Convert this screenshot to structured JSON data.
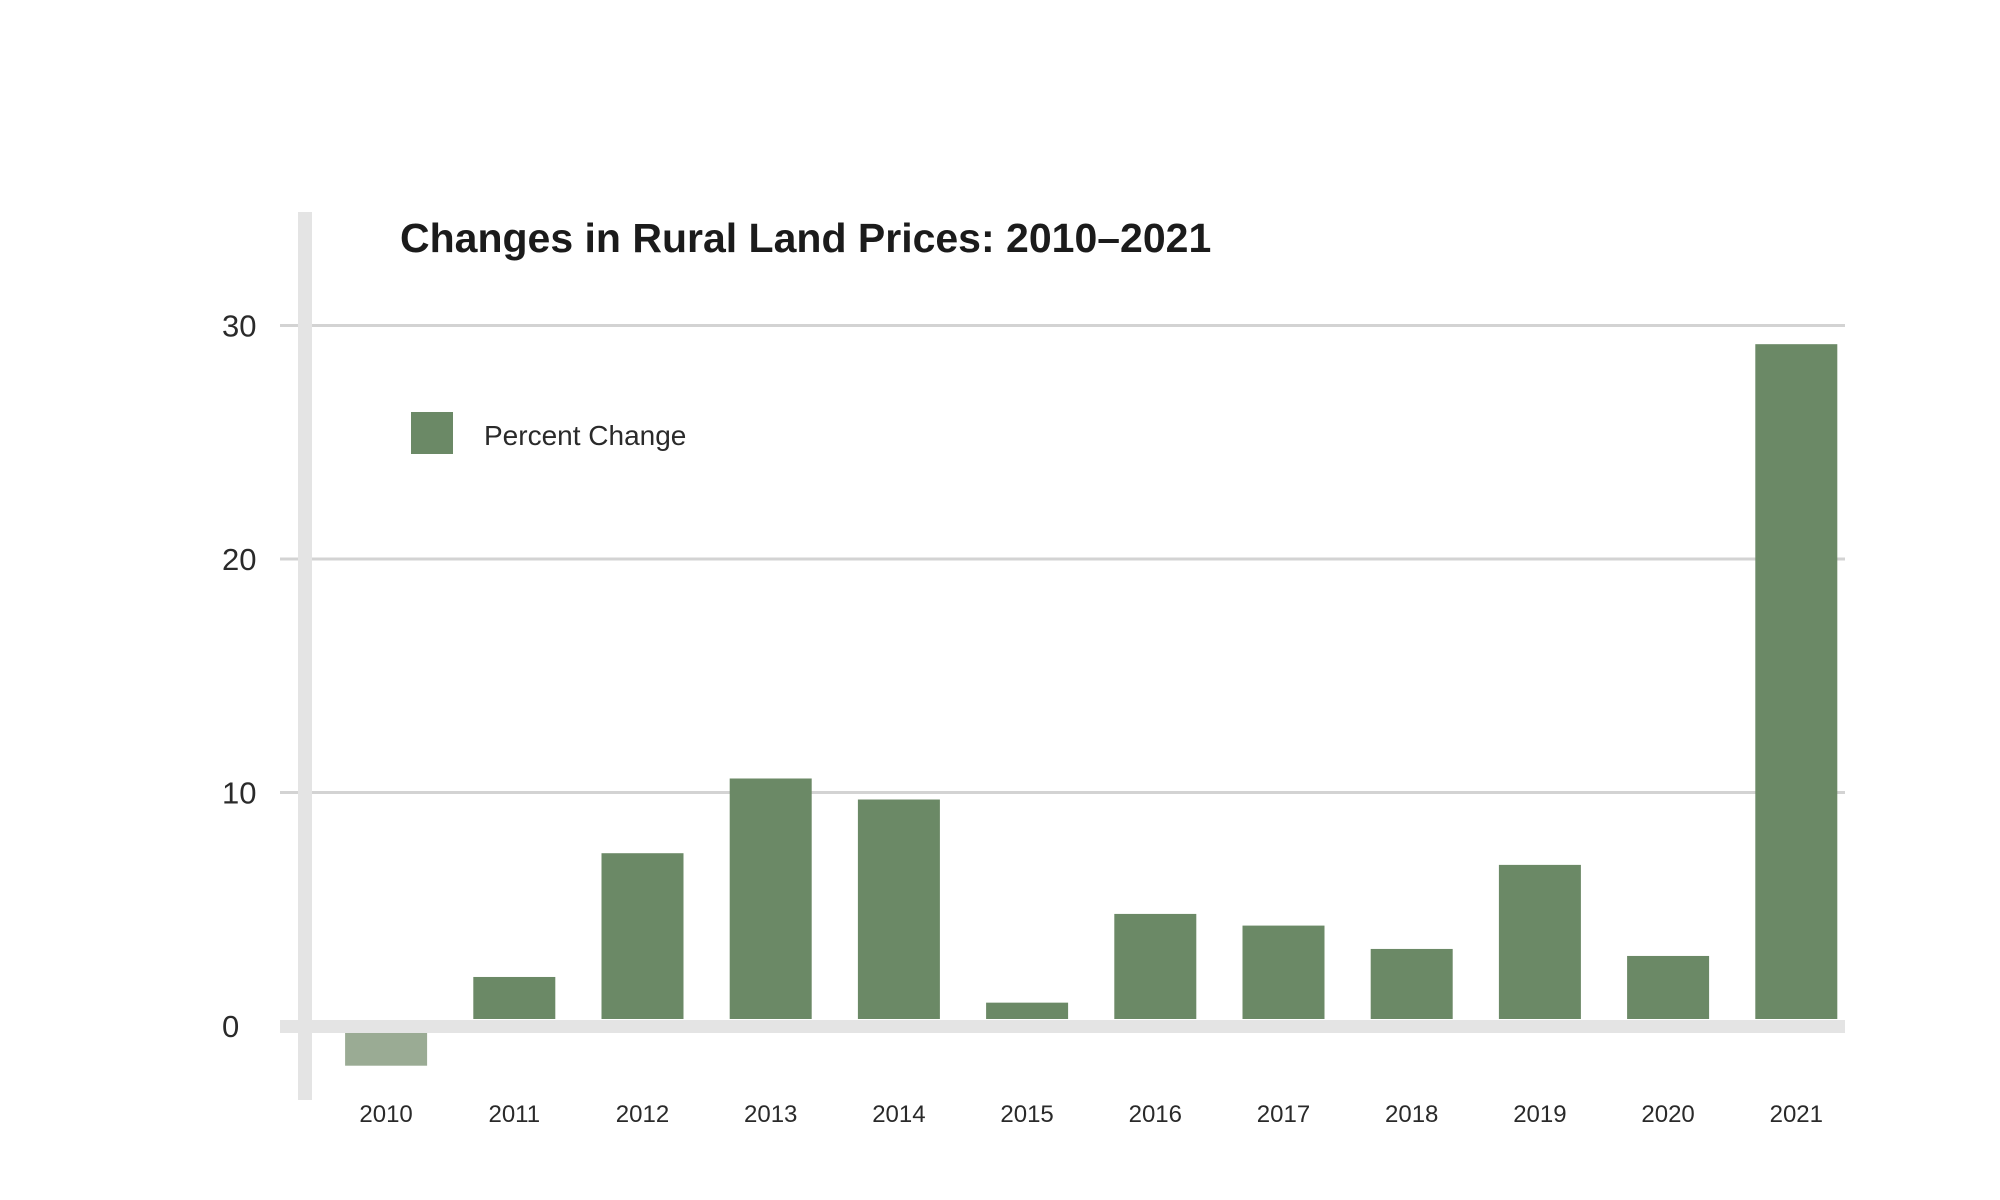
{
  "chart_data": {
    "type": "bar",
    "title": "Changes in Rural Land Prices: 2010–2021",
    "xlabel": "",
    "ylabel": "",
    "categories": [
      "2010",
      "2011",
      "2012",
      "2013",
      "2014",
      "2015",
      "2016",
      "2017",
      "2018",
      "2019",
      "2020",
      "2021"
    ],
    "series": [
      {
        "name": "Percent Change",
        "values": [
          -1.7,
          2.1,
          7.4,
          10.6,
          9.7,
          1.0,
          4.8,
          4.3,
          3.3,
          6.9,
          3.0,
          29.2
        ]
      }
    ],
    "ylim": [
      -3,
      34
    ],
    "yticks": [
      "0",
      "10",
      "20",
      "30"
    ],
    "grid": true,
    "legend": "top-left",
    "colors": {
      "bar": "#6b8966",
      "negative_bar": "#9aab94",
      "grid": "#d3d3d3",
      "axis": "#e4e4e4"
    }
  }
}
